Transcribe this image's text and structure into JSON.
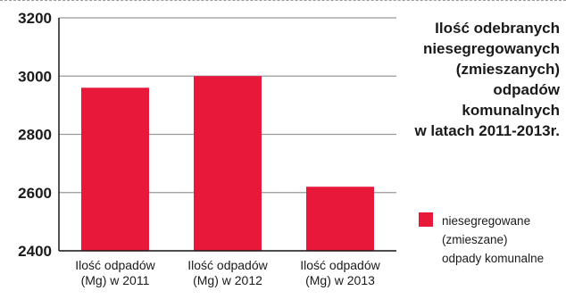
{
  "title_lines": [
    "Ilość odebranych",
    "niesegregowanych",
    "(zmieszanych)",
    "odpadów",
    "komunalnych",
    "w latach 2011-2013r."
  ],
  "legend": {
    "label_lines": [
      "niesegregowane",
      "(zmieszane)",
      "odpady komunalne"
    ],
    "color": "#e8183a"
  },
  "chart_data": {
    "type": "bar",
    "categories": [
      [
        "Ilość odpadów",
        "(Mg) w 2011"
      ],
      [
        "Ilość odpadów",
        "(Mg) w 2012"
      ],
      [
        "Ilość odpadów",
        "(Mg) w 2013"
      ]
    ],
    "series": [
      {
        "name": "niesegregowane (zmieszane) odpady komunalne",
        "values": [
          2960,
          3000,
          2620
        ]
      }
    ],
    "ylim": [
      2400,
      3200
    ],
    "yticks": [
      2400,
      2600,
      2800,
      3000,
      3200
    ],
    "ytick_labels": [
      "2400",
      "2600",
      "2800",
      "3000",
      "3200"
    ],
    "grid": true,
    "legend_position": "right",
    "bar_color": "#e8183a",
    "grid_color": "#9a9a9a",
    "axis_color": "#1a1a1a"
  }
}
